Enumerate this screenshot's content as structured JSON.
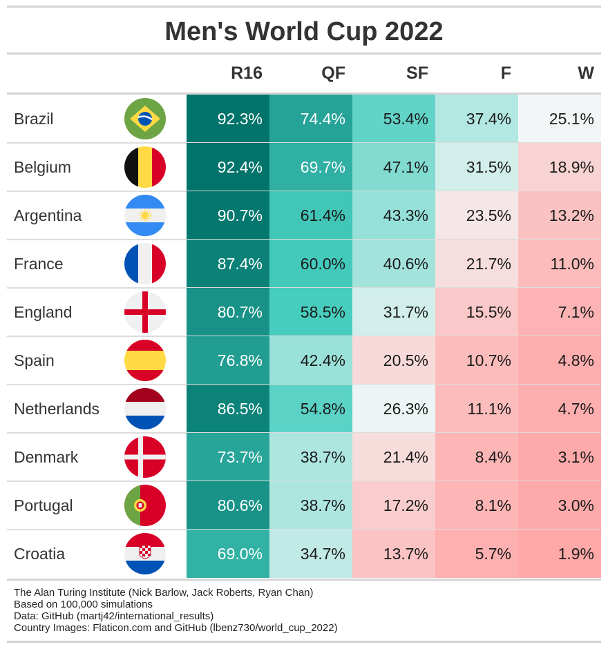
{
  "title": "Men's World Cup 2022",
  "chart_data": {
    "type": "table",
    "title": "Men's World Cup 2022",
    "columns": [
      "R16",
      "QF",
      "SF",
      "F",
      "W"
    ],
    "rows": [
      {
        "team": "Brazil",
        "flag": "brazil-flag-icon",
        "values": [
          "92.3%",
          "74.4%",
          "53.4%",
          "37.4%",
          "25.1%"
        ]
      },
      {
        "team": "Belgium",
        "flag": "belgium-flag-icon",
        "values": [
          "92.4%",
          "69.7%",
          "47.1%",
          "31.5%",
          "18.9%"
        ]
      },
      {
        "team": "Argentina",
        "flag": "argentina-flag-icon",
        "values": [
          "90.7%",
          "61.4%",
          "43.3%",
          "23.5%",
          "13.2%"
        ]
      },
      {
        "team": "France",
        "flag": "france-flag-icon",
        "values": [
          "87.4%",
          "60.0%",
          "40.6%",
          "21.7%",
          "11.0%"
        ]
      },
      {
        "team": "England",
        "flag": "england-flag-icon",
        "values": [
          "80.7%",
          "58.5%",
          "31.7%",
          "15.5%",
          "7.1%"
        ]
      },
      {
        "team": "Spain",
        "flag": "spain-flag-icon",
        "values": [
          "76.8%",
          "42.4%",
          "20.5%",
          "10.7%",
          "4.8%"
        ]
      },
      {
        "team": "Netherlands",
        "flag": "netherlands-flag-icon",
        "values": [
          "86.5%",
          "54.8%",
          "26.3%",
          "11.1%",
          "4.7%"
        ]
      },
      {
        "team": "Denmark",
        "flag": "denmark-flag-icon",
        "values": [
          "73.7%",
          "38.7%",
          "21.4%",
          "8.4%",
          "3.1%"
        ]
      },
      {
        "team": "Portugal",
        "flag": "portugal-flag-icon",
        "values": [
          "80.6%",
          "38.7%",
          "17.2%",
          "8.1%",
          "3.0%"
        ]
      },
      {
        "team": "Croatia",
        "flag": "croatia-flag-icon",
        "values": [
          "69.0%",
          "34.7%",
          "13.7%",
          "5.7%",
          "1.9%"
        ]
      }
    ],
    "color_scale": {
      "high": "#00736a",
      "mid": "#f3f6f6",
      "low": "#ffa8a8"
    }
  },
  "footer": [
    "The Alan Turing Institute (Nick Barlow, Jack Roberts, Ryan Chan)",
    "Based on 100,000 simulations",
    "Data: GitHub (martj42/international_results)",
    "Country Images: Flaticon.com and GitHub (lbenz730/world_cup_2022)"
  ]
}
